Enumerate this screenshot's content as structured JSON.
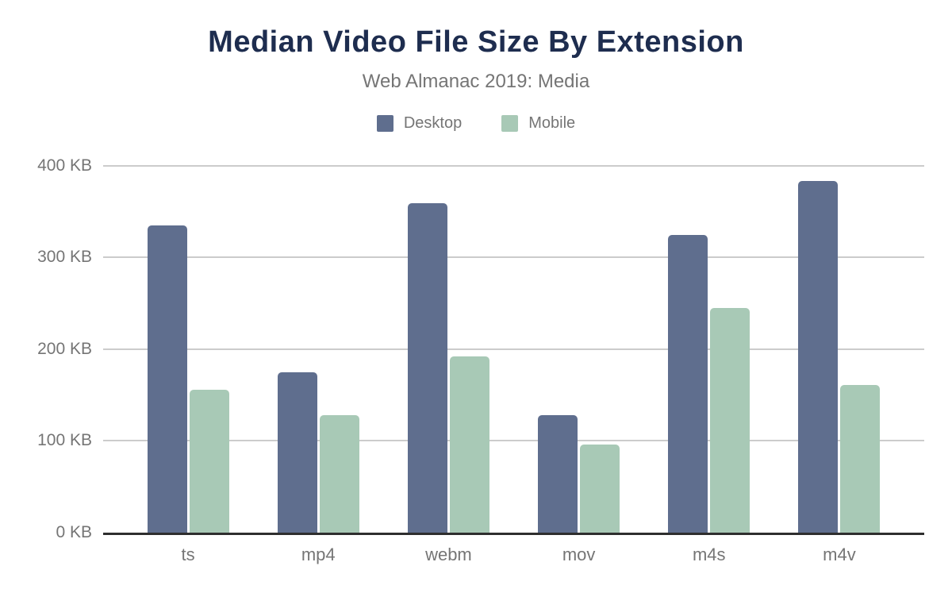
{
  "header": {
    "title": "Median Video File Size By Extension",
    "subtitle": "Web Almanac 2019: Media"
  },
  "colors": {
    "title_text": "#1e2d4f",
    "muted_text": "#757575",
    "gridline": "#cccccc",
    "axis_line": "#2e2e2e",
    "background": "#ffffff",
    "desktop_series": "#5f6e8e",
    "mobile_series": "#a8c9b6"
  },
  "chart_data": {
    "type": "bar",
    "title": "Median Video File Size By Extension",
    "subtitle": "Web Almanac 2019: Media",
    "categories": [
      "ts",
      "mp4",
      "webm",
      "mov",
      "m4s",
      "m4v"
    ],
    "series": [
      {
        "name": "Desktop",
        "color": "#5f6e8e",
        "values": [
          335,
          175,
          359,
          128,
          324,
          383
        ]
      },
      {
        "name": "Mobile",
        "color": "#a8c9b6",
        "values": [
          156,
          128,
          192,
          96,
          245,
          161
        ]
      }
    ],
    "unit": "KB",
    "xlabel": "",
    "ylabel": "",
    "ylim": [
      0,
      400
    ],
    "y_ticks": [
      {
        "value": 400,
        "label": "400 KB"
      },
      {
        "value": 300,
        "label": "300 KB"
      },
      {
        "value": 200,
        "label": "200 KB"
      },
      {
        "value": 100,
        "label": "100 KB"
      },
      {
        "value": 0,
        "label": "0 KB"
      }
    ],
    "grid": true,
    "legend_position": "top"
  }
}
